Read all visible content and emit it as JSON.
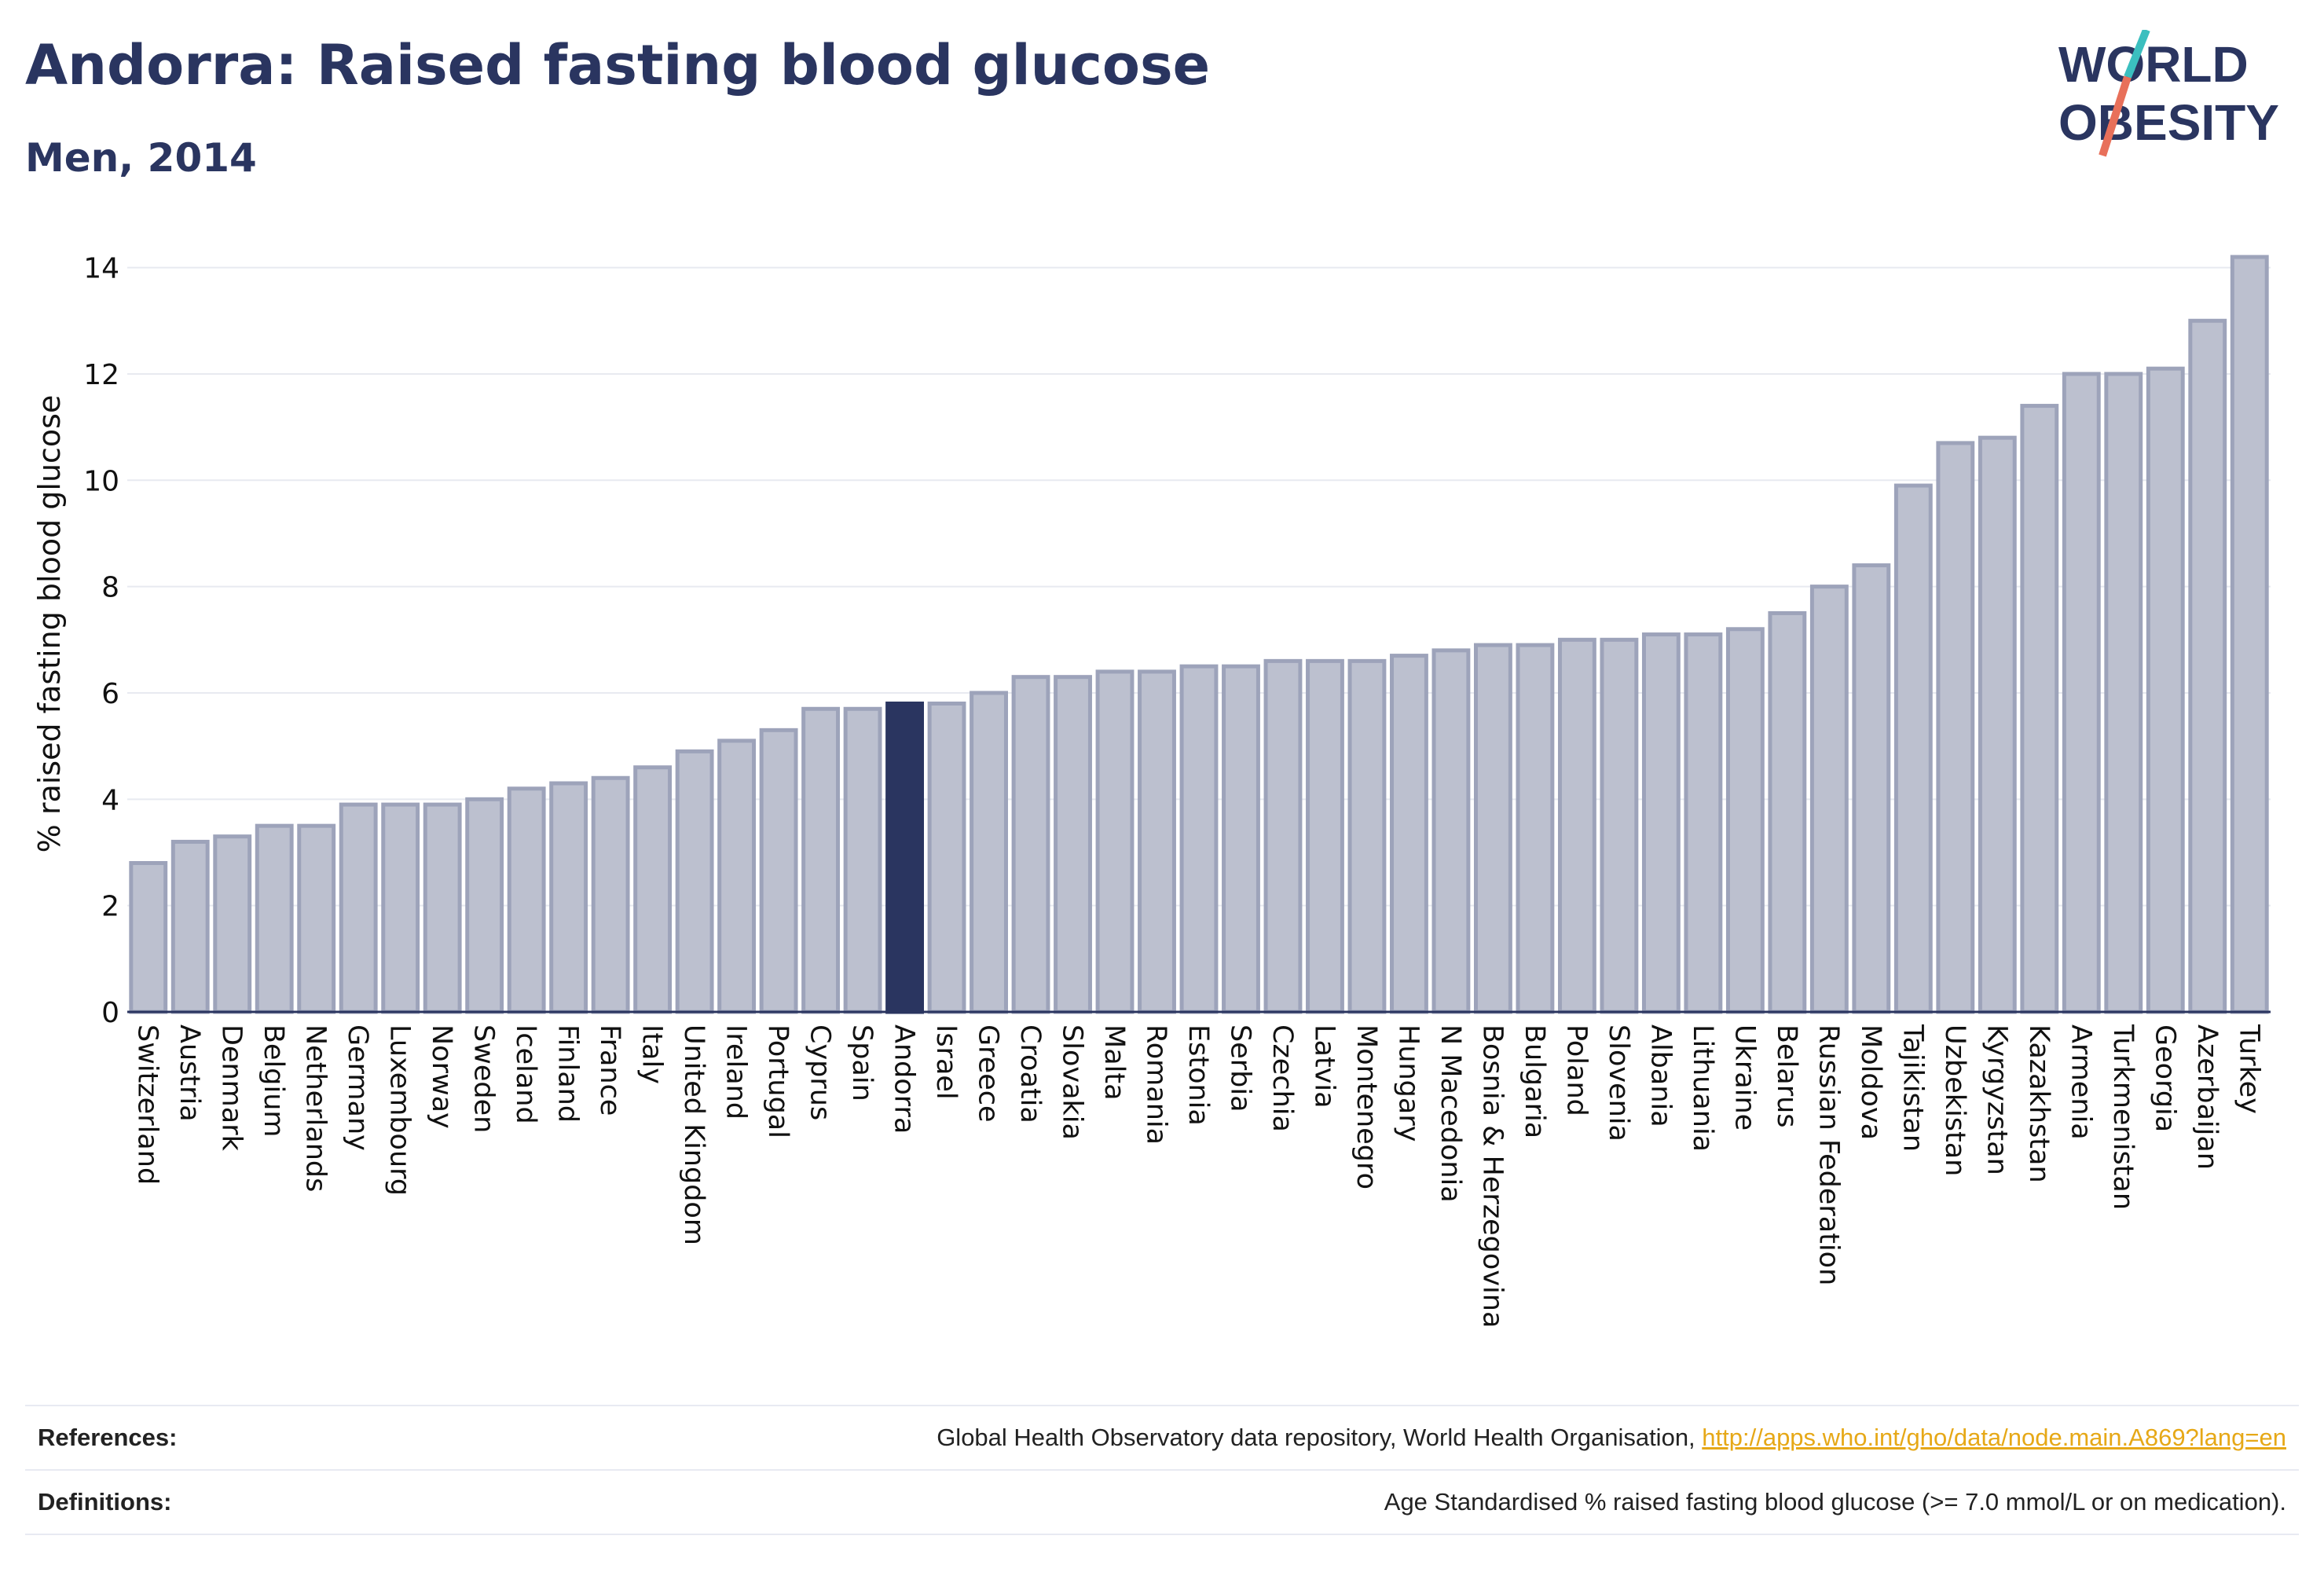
{
  "header": {
    "title": "Andorra: Raised fasting blood glucose",
    "subtitle": "Men, 2014"
  },
  "logo": {
    "line1": "WORLD",
    "line2": "OBESITY",
    "colors": {
      "text": "#2a3560",
      "slash_top": "#3bbfbf",
      "slash_bottom": "#e8705a"
    }
  },
  "colors": {
    "bar_fill": "#bcc0cf",
    "bar_stroke": "#9da3ba",
    "highlight": "#2a3560",
    "grid": "#e8eaf0",
    "axis": "#2a3560"
  },
  "chart_data": {
    "type": "bar",
    "title": "",
    "xlabel": "",
    "ylabel": "% raised fasting blood glucose",
    "ylim": [
      0,
      14.6
    ],
    "yticks": [
      0,
      2,
      4,
      6,
      8,
      10,
      12,
      14
    ],
    "grid": true,
    "highlight": "Andorra",
    "categories": [
      "Switzerland",
      "Austria",
      "Denmark",
      "Belgium",
      "Netherlands",
      "Germany",
      "Luxembourg",
      "Norway",
      "Sweden",
      "Iceland",
      "Finland",
      "France",
      "Italy",
      "United Kingdom",
      "Ireland",
      "Portugal",
      "Cyprus",
      "Spain",
      "Andorra",
      "Israel",
      "Greece",
      "Croatia",
      "Slovakia",
      "Malta",
      "Romania",
      "Estonia",
      "Serbia",
      "Czechia",
      "Latvia",
      "Montenegro",
      "Hungary",
      "N Macedonia",
      "Bosnia & Herzegovina",
      "Bulgaria",
      "Poland",
      "Slovenia",
      "Albania",
      "Lithuania",
      "Ukraine",
      "Belarus",
      "Russian Federation",
      "Moldova",
      "Tajikistan",
      "Uzbekistan",
      "Kyrgyzstan",
      "Kazakhstan",
      "Armenia",
      "Turkmenistan",
      "Georgia",
      "Azerbaijan",
      "Turkey"
    ],
    "values": [
      2.8,
      3.2,
      3.3,
      3.5,
      3.5,
      3.9,
      3.9,
      3.9,
      4.0,
      4.2,
      4.3,
      4.4,
      4.6,
      4.9,
      5.1,
      5.3,
      5.7,
      5.7,
      5.8,
      5.8,
      6.0,
      6.3,
      6.3,
      6.4,
      6.4,
      6.5,
      6.5,
      6.6,
      6.6,
      6.6,
      6.7,
      6.8,
      6.9,
      6.9,
      7.0,
      7.0,
      7.1,
      7.1,
      7.2,
      7.5,
      8.0,
      8.4,
      9.9,
      10.7,
      10.8,
      11.4,
      12.0,
      12.0,
      12.1,
      13.0,
      14.2
    ]
  },
  "footer": {
    "references_label": "References:",
    "references_text": "Global Health Observatory data repository, World Health Organisation, ",
    "references_link": "http://apps.who.int/gho/data/node.main.A869?lang=en",
    "definitions_label": "Definitions:",
    "definitions_text": "Age Standardised % raised fasting blood glucose (>= 7.0 mmol/L or on medication)."
  }
}
